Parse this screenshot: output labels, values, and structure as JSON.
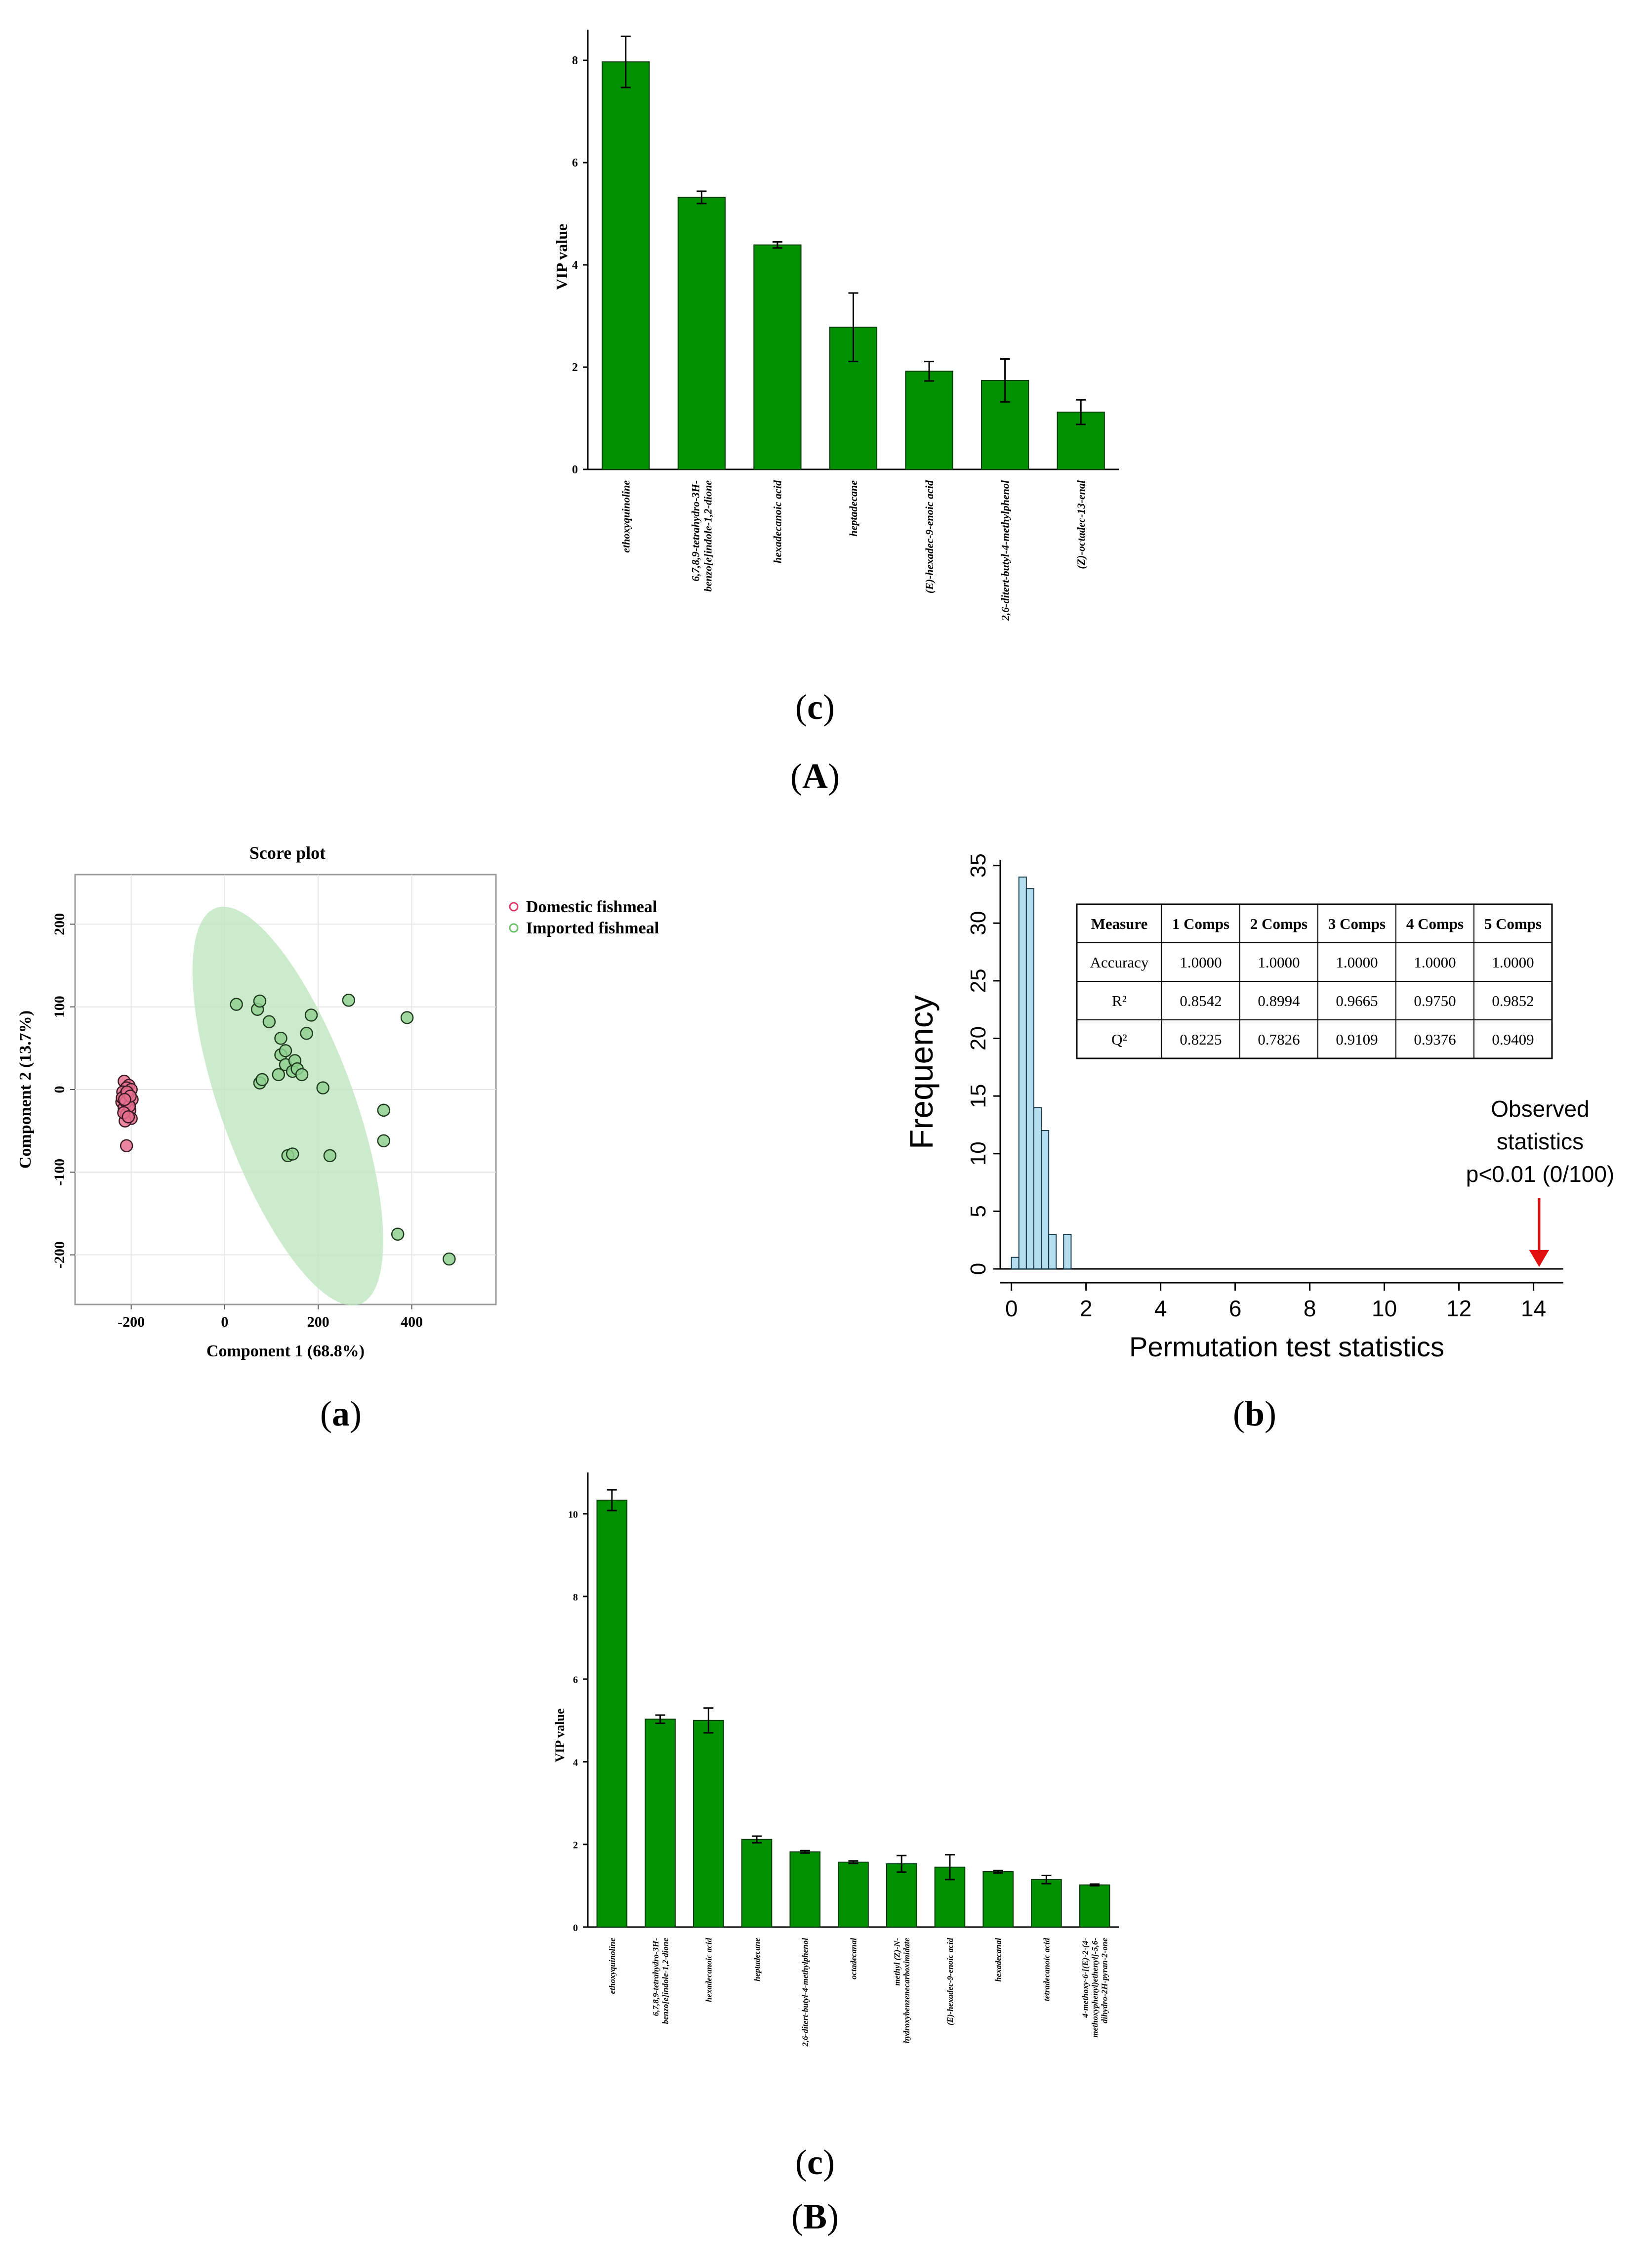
{
  "captions": {
    "panel_c_top": "c",
    "panel_A": "A",
    "panel_a": "a",
    "panel_b": "b",
    "panel_c_bottom": "c",
    "panel_B": "B"
  },
  "chart_data": [
    {
      "id": "vip_top",
      "type": "bar",
      "title": "",
      "xlabel": "",
      "ylabel": "VIP value",
      "ylim": [
        0,
        8.6
      ],
      "yticks": [
        0,
        2,
        4,
        6,
        8
      ],
      "color": "#009000",
      "categories": [
        "ethoxyquinoline",
        "6,7,8,9-tetrahydro-3H-benzo[e]indole-1,2-dione",
        "hexadecanoic acid",
        "heptadecane",
        "(E)-hexadec-9-enoic acid",
        "2,6-ditert-butyl-4-methylphenol",
        "(Z)-octadec-13-enal"
      ],
      "category_lines": [
        [
          "ethoxyquinoline"
        ],
        [
          "6,7,8,9-tetrahydro-3H-",
          "benzo[e]indole-1,2-dione"
        ],
        [
          "hexadecanoic acid"
        ],
        [
          "heptadecane"
        ],
        [
          "(E)-hexadec-9-enoic acid"
        ],
        [
          "2,6-ditert-butyl-4-methylphenol"
        ],
        [
          "(Z)-octadec-13-enal"
        ]
      ],
      "values": [
        7.97,
        5.32,
        4.39,
        2.78,
        1.92,
        1.74,
        1.12
      ],
      "errors": [
        0.5,
        0.12,
        0.06,
        0.67,
        0.19,
        0.42,
        0.24
      ]
    },
    {
      "id": "score_plot",
      "type": "scatter",
      "title": "Score plot",
      "xlabel": "Component 1 (68.8%)",
      "ylabel": "Component 2 (13.7%)",
      "xlim": [
        -320,
        580
      ],
      "ylim": [
        -260,
        260
      ],
      "xticks": [
        -200,
        0,
        200,
        400
      ],
      "yticks": [
        -200,
        -100,
        0,
        100,
        200
      ],
      "grid": true,
      "legend_position": "right",
      "series": [
        {
          "name": "Domestic fishmeal",
          "color": "#e8708f",
          "points": [
            [
              -215,
              10
            ],
            [
              -205,
              5
            ],
            [
              -210,
              2
            ],
            [
              -200,
              0
            ],
            [
              -218,
              -3
            ],
            [
              -212,
              -6
            ],
            [
              -205,
              -10
            ],
            [
              -198,
              -12
            ],
            [
              -220,
              -15
            ],
            [
              -208,
              -18
            ],
            [
              -215,
              -22
            ],
            [
              -203,
              -25
            ],
            [
              -210,
              -30
            ],
            [
              -200,
              -35
            ],
            [
              -213,
              -38
            ],
            [
              -219,
              -10
            ],
            [
              -207,
              -5
            ],
            [
              -211,
              -15
            ],
            [
              -204,
              -20
            ],
            [
              -216,
              -28
            ],
            [
              -209,
              -3
            ],
            [
              -202,
              -8
            ],
            [
              -214,
              -12
            ],
            [
              -206,
              -33
            ],
            [
              -210,
              -68
            ]
          ]
        },
        {
          "name": "Imported fishmeal",
          "color": "#8fd08f",
          "points": [
            [
              25,
              103
            ],
            [
              70,
              97
            ],
            [
              75,
              107
            ],
            [
              95,
              82
            ],
            [
              120,
              62
            ],
            [
              120,
              42
            ],
            [
              130,
              47
            ],
            [
              130,
              30
            ],
            [
              145,
              22
            ],
            [
              150,
              35
            ],
            [
              155,
              25
            ],
            [
              165,
              18
            ],
            [
              175,
              68
            ],
            [
              185,
              90
            ],
            [
              210,
              2
            ],
            [
              265,
              108
            ],
            [
              390,
              87
            ],
            [
              75,
              8
            ],
            [
              80,
              12
            ],
            [
              115,
              18
            ],
            [
              135,
              -80
            ],
            [
              145,
              -78
            ],
            [
              225,
              -80
            ],
            [
              340,
              -25
            ],
            [
              340,
              -62
            ],
            [
              370,
              -175
            ],
            [
              480,
              -205
            ]
          ]
        }
      ],
      "ellipse": {
        "cx": 135,
        "cy": -20,
        "rx": 290,
        "ry": 125,
        "angle_deg": -52,
        "series": "Imported fishmeal"
      }
    },
    {
      "id": "permutation",
      "type": "bar",
      "title": "",
      "xlabel": "Permutation test statistics",
      "ylabel": "Frequency",
      "xlim": [
        -0.3,
        14.8
      ],
      "ylim": [
        0,
        35.5
      ],
      "xticks": [
        0,
        2,
        4,
        6,
        8,
        10,
        12,
        14
      ],
      "yticks": [
        0,
        5,
        10,
        15,
        20,
        25,
        30,
        35
      ],
      "color": "#b5dff0",
      "bin_width": 0.2,
      "bins": [
        0.1,
        0.3,
        0.5,
        0.7,
        0.9,
        1.1,
        1.3,
        1.5
      ],
      "frequencies": [
        1,
        34,
        33,
        14,
        12,
        3,
        0,
        3
      ],
      "observed_statistic": 14.15,
      "annotation": [
        "Observed",
        "statistics",
        "p<0.01 (0/100)"
      ],
      "table": {
        "headers": [
          "Measure",
          "1 Comps",
          "2 Comps",
          "3 Comps",
          "4 Comps",
          "5 Comps"
        ],
        "rows": [
          [
            "Accuracy",
            "1.0000",
            "1.0000",
            "1.0000",
            "1.0000",
            "1.0000"
          ],
          [
            "R²",
            "0.8542",
            "0.8994",
            "0.9665",
            "0.9750",
            "0.9852"
          ],
          [
            "Q²",
            "0.8225",
            "0.7826",
            "0.9109",
            "0.9376",
            "0.9409"
          ]
        ]
      }
    },
    {
      "id": "vip_bottom",
      "type": "bar",
      "title": "",
      "xlabel": "",
      "ylabel": "VIP value",
      "ylim": [
        0,
        11
      ],
      "yticks": [
        0,
        2,
        4,
        6,
        8,
        10
      ],
      "color": "#009000",
      "categories": [
        "ethoxyquinoline",
        "6,7,8,9-tetrahydro-3H-benzo[e]indole-1,2-dione",
        "hexadecanoic acid",
        "heptadecane",
        "2,6-ditert-butyl-4-methylphenol",
        "octadecanal",
        "methyl (Z)-N-hydroxybenzenecarboximidate",
        "(E)-hexadec-9-enoic acid",
        "hexadecanal",
        "tetradecanoic acid",
        "4-methoxy-6-[(E)-2-(4-methoxyphenyl)ethenyl]-5,6-dihydro-2H-pyran-2-one"
      ],
      "category_lines": [
        [
          "ethoxyquinoline"
        ],
        [
          "6,7,8,9-tetrahydro-3H-",
          "benzo[e]indole-1,2-dione"
        ],
        [
          "hexadecanoic acid"
        ],
        [
          "heptadecane"
        ],
        [
          "2,6-ditert-butyl-4-methylphenol"
        ],
        [
          "octadecanal"
        ],
        [
          "methyl (Z)-N-",
          "hydroxybenzenecarboximidate"
        ],
        [
          "(E)-hexadec-9-enoic acid"
        ],
        [
          "hexadecanal"
        ],
        [
          "tetradecanoic acid"
        ],
        [
          "4-methoxy-6-[(E)-2-(4-",
          "methoxyphenyl)ethenyl]-5,6-",
          "dihydro-2H-pyran-2-one"
        ]
      ],
      "values": [
        10.33,
        5.03,
        5.0,
        2.12,
        1.82,
        1.57,
        1.53,
        1.45,
        1.34,
        1.15,
        1.02
      ],
      "errors": [
        0.25,
        0.1,
        0.3,
        0.08,
        0.03,
        0.03,
        0.2,
        0.3,
        0.03,
        0.1,
        0.02
      ]
    }
  ]
}
